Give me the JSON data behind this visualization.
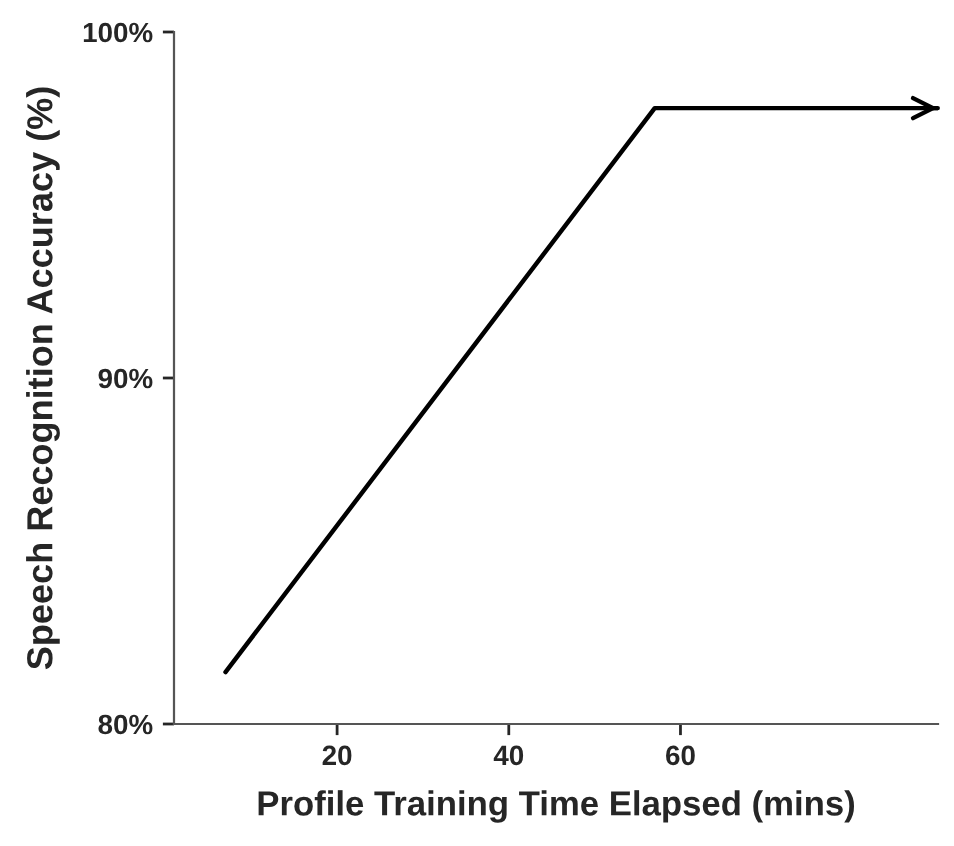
{
  "chart_data": {
    "type": "line",
    "xlabel": "Profile Training Time Elapsed (mins)",
    "ylabel": "Speech Recognition Accuracy (%)",
    "x": [
      7,
      57,
      90
    ],
    "series": [
      {
        "color": "#000000",
        "values": [
          81.5,
          97.8,
          97.8
        ]
      }
    ],
    "xlim": [
      1,
      90
    ],
    "xticks": [
      20,
      40,
      60
    ],
    "ylim": [
      80,
      100
    ],
    "yticks": [
      {
        "value": 80,
        "label": "80%"
      },
      {
        "value": 90,
        "label": "90%"
      },
      {
        "value": 100,
        "label": "100%"
      }
    ],
    "grid": false,
    "legend": false,
    "marker": "none",
    "line_style": "solid"
  }
}
